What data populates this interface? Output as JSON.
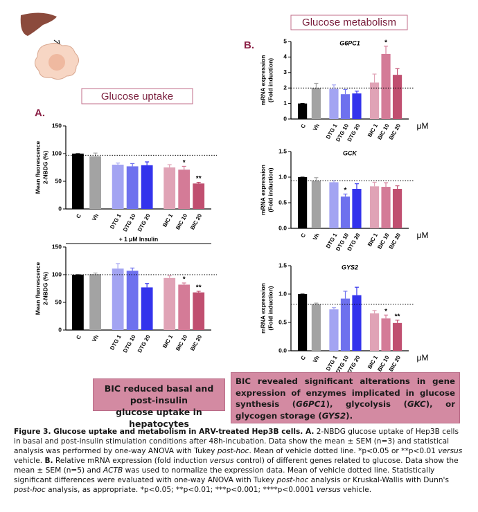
{
  "sections": {
    "uptake": "Glucose uptake",
    "metabolism": "Glucose metabolism",
    "label_a": "A.",
    "label_b": "B."
  },
  "chart_data": [
    {
      "type": "bar",
      "ylabel": [
        "Mean fluorescence",
        "2-NBDG (%)"
      ],
      "categories": [
        "C",
        "Vh",
        "DTG 1",
        "DTG 10",
        "DTG 20",
        "BIC 1",
        "BIC 10",
        "BIC 20"
      ],
      "values": [
        100,
        95,
        80,
        77,
        79,
        75,
        71,
        46
      ],
      "errors": [
        0,
        6,
        3,
        5,
        6,
        5,
        6,
        2
      ],
      "annotations": [
        null,
        null,
        null,
        null,
        null,
        null,
        "*",
        "**"
      ],
      "colors": [
        "#000000",
        "#a3a3a3",
        "#a3a4f2",
        "#6e71ee",
        "#3333ec",
        "#e0a3b6",
        "#d47b97",
        "#c04f70"
      ],
      "ylim": [
        0,
        150
      ],
      "yticks": [
        0,
        50,
        100,
        150
      ],
      "reference_line": 97
    },
    {
      "type": "bar",
      "ylabel": [
        "Mean fluorescence",
        "2-NBDG (%)"
      ],
      "annotation": "+ 1 μM Insulin",
      "categories": [
        "C",
        "Vh",
        "DTG 1",
        "DTG 10",
        "DTG 20",
        "BIC 1",
        "BIC 10",
        "BIC 20"
      ],
      "values": [
        100,
        101,
        111,
        107,
        77,
        94,
        82,
        68
      ],
      "errors": [
        0,
        2,
        9,
        5,
        7,
        4,
        3,
        2
      ],
      "annotations": [
        null,
        null,
        null,
        null,
        null,
        null,
        "*",
        "**"
      ],
      "colors": [
        "#000000",
        "#a3a3a3",
        "#a3a4f2",
        "#6e71ee",
        "#3333ec",
        "#e0a3b6",
        "#d47b97",
        "#c04f70"
      ],
      "ylim": [
        0,
        150
      ],
      "yticks": [
        0,
        50,
        100,
        150
      ],
      "reference_line": 100
    },
    {
      "type": "bar",
      "title": "G6PC1",
      "ylabel": [
        "mRNA expression",
        "(Fold induction)"
      ],
      "xlabel": "μM",
      "categories": [
        "C",
        "Vh",
        "DTG 1",
        "DTG 10",
        "DTG 20",
        "BIC 1",
        "BIC 10",
        "BIC 20"
      ],
      "values": [
        1.0,
        2.0,
        1.95,
        1.6,
        1.65,
        2.35,
        4.2,
        2.85
      ],
      "errors": [
        0,
        0.3,
        0.25,
        0.3,
        0.15,
        0.55,
        0.5,
        0.4
      ],
      "annotations": [
        null,
        null,
        null,
        null,
        null,
        null,
        "*",
        null
      ],
      "colors": [
        "#000000",
        "#a3a3a3",
        "#a3a4f2",
        "#6e71ee",
        "#3333ec",
        "#e0a3b6",
        "#d47b97",
        "#c04f70"
      ],
      "ylim": [
        0,
        5
      ],
      "yticks": [
        0,
        1,
        2,
        3,
        4,
        5
      ],
      "reference_line": 2.0
    },
    {
      "type": "bar",
      "title": "GCK",
      "ylabel": [
        "mRNA expression",
        "(Fold induction)"
      ],
      "xlabel": "μM",
      "categories": [
        "C",
        "Vh",
        "DTG 1",
        "DTG 10",
        "DTG 20",
        "BIC 1",
        "BIC 10",
        "BIC 20"
      ],
      "values": [
        1.0,
        0.93,
        0.9,
        0.62,
        0.77,
        0.82,
        0.81,
        0.77
      ],
      "errors": [
        0,
        0.06,
        0.03,
        0.05,
        0.1,
        0.08,
        0.08,
        0.06
      ],
      "annotations": [
        null,
        null,
        null,
        "*",
        null,
        null,
        null,
        null
      ],
      "colors": [
        "#000000",
        "#a3a3a3",
        "#a3a4f2",
        "#6e71ee",
        "#3333ec",
        "#e0a3b6",
        "#d47b97",
        "#c04f70"
      ],
      "ylim": [
        0,
        1.5
      ],
      "yticks": [
        {
          "value": 0,
          "label": "0.0"
        },
        0.5,
        {
          "value": 1,
          "label": "1.0"
        },
        1.5
      ],
      "reference_line": 0.93
    },
    {
      "type": "bar",
      "title": "GYS2",
      "ylabel": [
        "mRNA expression",
        "(Fold induction)"
      ],
      "xlabel": "μM",
      "categories": [
        "C",
        "Vh",
        "DTG 1",
        "DTG 10",
        "DTG 20",
        "BIC 1",
        "BIC 10",
        "BIC 20"
      ],
      "values": [
        1.0,
        0.82,
        0.73,
        0.92,
        0.98,
        0.66,
        0.57,
        0.49
      ],
      "errors": [
        0,
        0.02,
        0.03,
        0.13,
        0.14,
        0.05,
        0.06,
        0.05
      ],
      "annotations": [
        null,
        null,
        null,
        null,
        null,
        null,
        "*",
        "**"
      ],
      "colors": [
        "#000000",
        "#a3a3a3",
        "#a3a4f2",
        "#6e71ee",
        "#3333ec",
        "#e0a3b6",
        "#d47b97",
        "#c04f70"
      ],
      "ylim": [
        0,
        1.5
      ],
      "yticks": [
        {
          "value": 0,
          "label": "0.0"
        },
        0.5,
        {
          "value": 1,
          "label": "1.0"
        },
        1.5
      ],
      "reference_line": 0.82
    }
  ],
  "summary": {
    "uptake": [
      "BIC reduced basal and post-insulin",
      "glucose uptake in hepatocytes"
    ],
    "metabolism": [
      "BIC revealed significant alterations in gene expression of enzymes implicated in glucose synthesis (",
      "G6PC1",
      "), glycolysis (",
      "GKC",
      "), or glycogen storage (",
      "GYS2",
      ")."
    ]
  },
  "caption": [
    "Figure 3. Glucose uptake and metabolism in ARV-treated Hep3B cells. A.",
    " 2-NBDG glucose uptake of Hep3B cells in basal and post-insulin stimulation conditions after 48h-incubation. Data show the mean ± SEM (n=3) and statistical analysis was performed by one-way ANOVA with Tukey ",
    "post-hoc",
    ". Mean of vehicle dotted line. *p<0.05 or **p<0.01 ",
    "versus",
    " vehicle. ",
    "B.",
    " Relative mRNA expression (fold induction ",
    "versus",
    " control) of different genes related to glucose. Data show the mean ± SEM (n=5) and ",
    "ACTB",
    " was used to normalize the expression data. Mean of vehicle dotted line. Statistically significant differences were evaluated with one-way ANOVA with Tukey ",
    "post-hoc",
    " analysis or Kruskal-Wallis with Dunn's ",
    "post-hoc",
    " analysis, as appropriate. *p<0.05; **p<0.01; ***p<0.001; ****p<0.0001 ",
    "versus",
    " vehicle."
  ]
}
